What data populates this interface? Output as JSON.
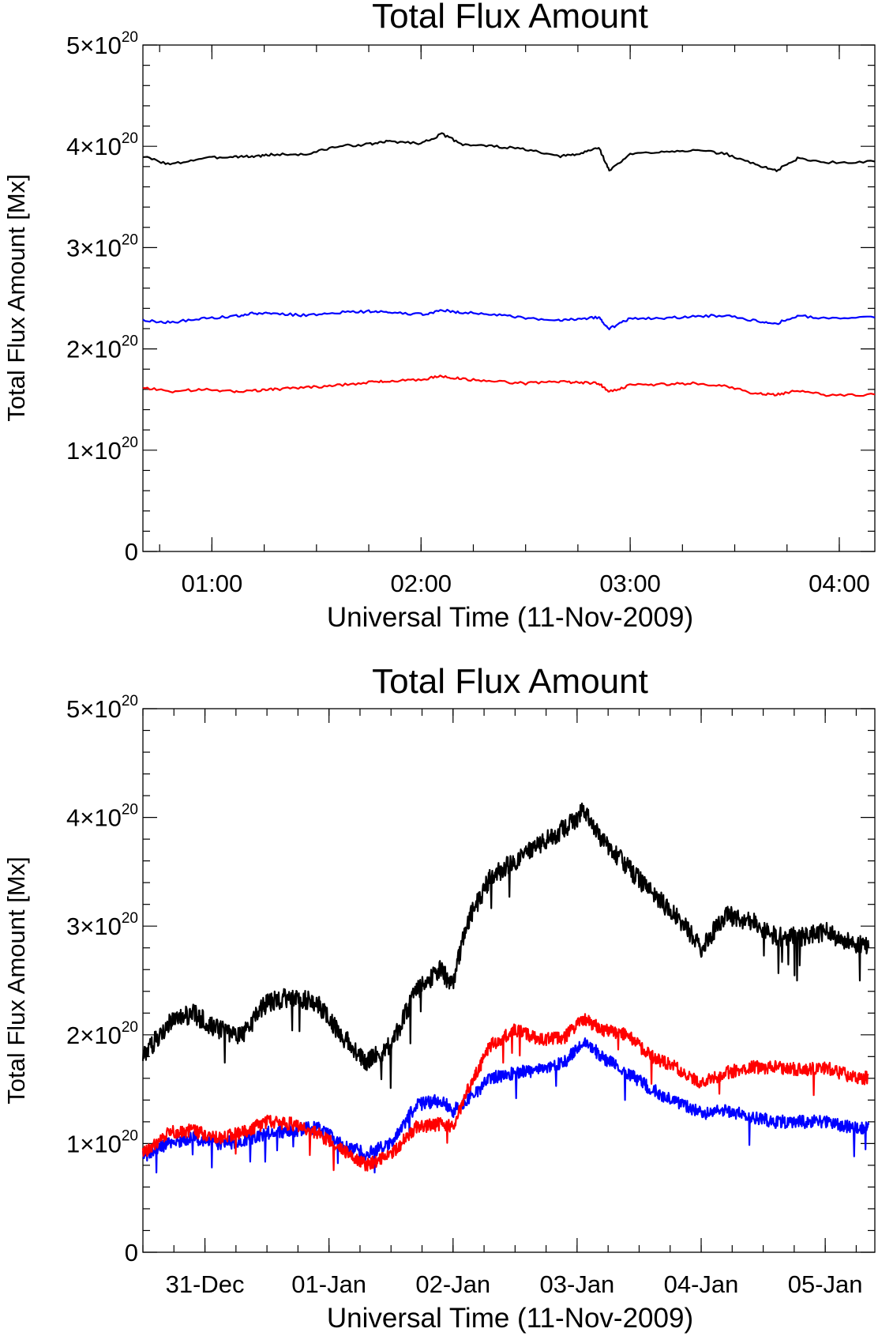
{
  "chart_data": [
    {
      "type": "line",
      "title": "Total Flux Amount",
      "xlabel": "Universal Time (11-Nov-2009)",
      "ylabel": "Total Flux Amount [Mx]",
      "x_unit": "hours UT",
      "xlim": [
        0.67,
        4.17
      ],
      "ylim": [
        0,
        5
      ],
      "y_multiplier_label": "×10",
      "y_exponent": "20",
      "x_ticks": [
        {
          "value": 1.0,
          "label": "01:00"
        },
        {
          "value": 2.0,
          "label": "02:00"
        },
        {
          "value": 3.0,
          "label": "03:00"
        },
        {
          "value": 4.0,
          "label": "04:00"
        }
      ],
      "y_ticks": [
        {
          "value": 0,
          "label": "0"
        },
        {
          "value": 1,
          "label": "1"
        },
        {
          "value": 2,
          "label": "2"
        },
        {
          "value": 3,
          "label": "3"
        },
        {
          "value": 4,
          "label": "4"
        },
        {
          "value": 5,
          "label": "5"
        }
      ],
      "series": [
        {
          "color": "#000000",
          "x": [
            0.67,
            0.8,
            0.95,
            1.1,
            1.2,
            1.3,
            1.45,
            1.6,
            1.75,
            1.85,
            2.0,
            2.1,
            2.2,
            2.35,
            2.5,
            2.65,
            2.75,
            2.85,
            2.9,
            3.0,
            3.15,
            3.3,
            3.45,
            3.6,
            3.7,
            3.8,
            3.95,
            4.17
          ],
          "y": [
            3.9,
            3.82,
            3.88,
            3.9,
            3.9,
            3.92,
            3.92,
            4.0,
            4.02,
            4.05,
            4.03,
            4.12,
            4.02,
            4.0,
            3.97,
            3.9,
            3.92,
            3.99,
            3.76,
            3.92,
            3.95,
            3.96,
            3.93,
            3.82,
            3.76,
            3.88,
            3.84,
            3.85
          ]
        },
        {
          "color": "#0000ff",
          "x": [
            0.67,
            0.8,
            0.95,
            1.1,
            1.2,
            1.3,
            1.45,
            1.6,
            1.75,
            1.85,
            2.0,
            2.1,
            2.2,
            2.35,
            2.5,
            2.65,
            2.75,
            2.85,
            2.9,
            3.0,
            3.15,
            3.3,
            3.45,
            3.6,
            3.7,
            3.8,
            3.95,
            4.17
          ],
          "y": [
            2.28,
            2.26,
            2.3,
            2.32,
            2.35,
            2.35,
            2.33,
            2.36,
            2.37,
            2.36,
            2.34,
            2.38,
            2.36,
            2.34,
            2.3,
            2.28,
            2.3,
            2.31,
            2.2,
            2.3,
            2.3,
            2.32,
            2.33,
            2.28,
            2.25,
            2.33,
            2.3,
            2.31
          ]
        },
        {
          "color": "#ff0000",
          "x": [
            0.67,
            0.8,
            0.95,
            1.1,
            1.2,
            1.3,
            1.45,
            1.6,
            1.75,
            1.85,
            2.0,
            2.1,
            2.2,
            2.35,
            2.5,
            2.65,
            2.75,
            2.85,
            2.9,
            3.0,
            3.15,
            3.3,
            3.45,
            3.6,
            3.7,
            3.8,
            3.95,
            4.17
          ],
          "y": [
            1.62,
            1.58,
            1.6,
            1.58,
            1.59,
            1.6,
            1.62,
            1.64,
            1.67,
            1.68,
            1.7,
            1.73,
            1.7,
            1.68,
            1.66,
            1.68,
            1.67,
            1.66,
            1.58,
            1.64,
            1.65,
            1.66,
            1.63,
            1.56,
            1.55,
            1.59,
            1.54,
            1.55
          ]
        }
      ]
    },
    {
      "type": "line",
      "title": "Total Flux Amount",
      "xlabel": "Universal Time (11-Nov-2009)",
      "ylabel": "Total Flux Amount [Mx]",
      "x_unit": "days since 31-Dec 00:00",
      "xlim": [
        -0.5,
        5.4
      ],
      "ylim": [
        0,
        5
      ],
      "y_multiplier_label": "×10",
      "y_exponent": "20",
      "x_ticks": [
        {
          "value": 0,
          "label": "31-Dec"
        },
        {
          "value": 1,
          "label": "01-Jan"
        },
        {
          "value": 2,
          "label": "02-Jan"
        },
        {
          "value": 3,
          "label": "03-Jan"
        },
        {
          "value": 4,
          "label": "04-Jan"
        },
        {
          "value": 5,
          "label": "05-Jan"
        }
      ],
      "y_ticks": [
        {
          "value": 0,
          "label": "0"
        },
        {
          "value": 1,
          "label": "1"
        },
        {
          "value": 2,
          "label": "2"
        },
        {
          "value": 3,
          "label": "3"
        },
        {
          "value": 4,
          "label": "4"
        },
        {
          "value": 5,
          "label": "5"
        }
      ],
      "noise_seed": 7,
      "series": [
        {
          "color": "#000000",
          "noise": 0.09,
          "x": [
            -0.5,
            -0.3,
            -0.1,
            0.1,
            0.3,
            0.5,
            0.7,
            0.9,
            1.1,
            1.3,
            1.5,
            1.7,
            1.9,
            2.0,
            2.1,
            2.3,
            2.5,
            2.7,
            2.9,
            3.05,
            3.2,
            3.4,
            3.6,
            3.8,
            4.0,
            4.2,
            4.4,
            4.6,
            4.8,
            5.0,
            5.2,
            5.35
          ],
          "y": [
            1.8,
            2.1,
            2.2,
            2.05,
            2.0,
            2.3,
            2.35,
            2.3,
            2.0,
            1.75,
            1.9,
            2.4,
            2.6,
            2.45,
            3.0,
            3.45,
            3.6,
            3.75,
            3.9,
            4.05,
            3.8,
            3.55,
            3.3,
            3.1,
            2.8,
            3.1,
            3.05,
            2.9,
            2.9,
            2.95,
            2.85,
            2.8
          ]
        },
        {
          "color": "#0000ff",
          "noise": 0.06,
          "x": [
            -0.5,
            -0.3,
            -0.1,
            0.1,
            0.3,
            0.5,
            0.7,
            0.9,
            1.1,
            1.3,
            1.5,
            1.7,
            1.9,
            2.0,
            2.1,
            2.3,
            2.5,
            2.7,
            2.9,
            3.05,
            3.2,
            3.4,
            3.6,
            3.8,
            4.0,
            4.2,
            4.4,
            4.6,
            4.8,
            5.0,
            5.2,
            5.35
          ],
          "y": [
            0.88,
            1.0,
            1.05,
            1.0,
            1.02,
            1.1,
            1.12,
            1.15,
            1.0,
            0.9,
            1.0,
            1.35,
            1.4,
            1.3,
            1.38,
            1.6,
            1.65,
            1.68,
            1.75,
            1.95,
            1.8,
            1.65,
            1.5,
            1.38,
            1.28,
            1.3,
            1.25,
            1.2,
            1.2,
            1.2,
            1.15,
            1.15
          ]
        },
        {
          "color": "#ff0000",
          "noise": 0.06,
          "x": [
            -0.5,
            -0.3,
            -0.1,
            0.1,
            0.3,
            0.5,
            0.7,
            0.9,
            1.1,
            1.3,
            1.5,
            1.7,
            1.9,
            2.0,
            2.1,
            2.3,
            2.5,
            2.7,
            2.9,
            3.05,
            3.2,
            3.4,
            3.6,
            3.8,
            4.0,
            4.2,
            4.4,
            4.6,
            4.8,
            5.0,
            5.2,
            5.35
          ],
          "y": [
            0.9,
            1.1,
            1.12,
            1.05,
            1.1,
            1.2,
            1.18,
            1.1,
            0.95,
            0.8,
            0.9,
            1.15,
            1.18,
            1.15,
            1.45,
            1.9,
            2.05,
            1.95,
            1.98,
            2.15,
            2.05,
            2.0,
            1.8,
            1.7,
            1.55,
            1.65,
            1.7,
            1.7,
            1.68,
            1.7,
            1.62,
            1.6
          ]
        }
      ]
    }
  ]
}
